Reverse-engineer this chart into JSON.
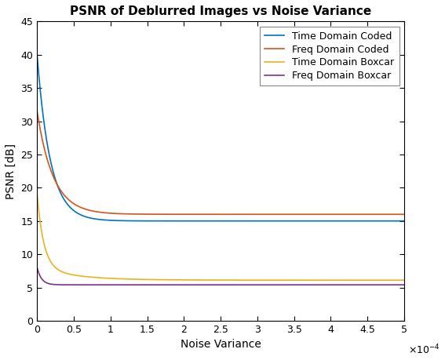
{
  "title": "PSNR of Deblurred Images vs Noise Variance",
  "xlabel": "Noise Variance",
  "ylabel": "PSNR [dB]",
  "xlim": [
    0,
    0.0005
  ],
  "ylim": [
    0,
    45
  ],
  "legend_labels": [
    "Time Domain Coded",
    "Freq Domain Coded",
    "Time Domain Boxcar",
    "Freq Domain Boxcar"
  ],
  "colors": [
    "#0072BD",
    "#D95319",
    "#EDB120",
    "#7E2F8E"
  ],
  "yticks": [
    0,
    5,
    10,
    15,
    20,
    25,
    30,
    35,
    40,
    45
  ],
  "xtick_vals": [
    0,
    0.5,
    1.0,
    1.5,
    2.0,
    2.5,
    3.0,
    3.5,
    4.0,
    4.5,
    5.0
  ],
  "xtick_labels": [
    "0",
    "0.5",
    "1",
    "1.5",
    "2",
    "2.5",
    "3",
    "3.5",
    "4",
    "4.5",
    "5"
  ],
  "curve_params": {
    "y1": {
      "floor": 15.0,
      "a1": 25.0,
      "tau1": 1.8e-05,
      "a2": 0.0,
      "tau2": 1.0
    },
    "y2": {
      "floor": 16.0,
      "a1": 16.0,
      "tau1": 2e-05,
      "a2": 0.0,
      "tau2": 1.0
    },
    "y3": {
      "floor": 6.1,
      "a1": 11.0,
      "tau1": 1e-05,
      "a2": 2.5,
      "tau2": 6e-05
    },
    "y4": {
      "floor": 5.4,
      "a1": 2.8,
      "tau1": 8e-06,
      "a2": 0.0,
      "tau2": 1.0
    }
  },
  "figsize": [
    5.67,
    4.59
  ],
  "dpi": 100,
  "linewidth": 1.2,
  "title_fontsize": 11,
  "axis_fontsize": 10,
  "legend_fontsize": 9
}
